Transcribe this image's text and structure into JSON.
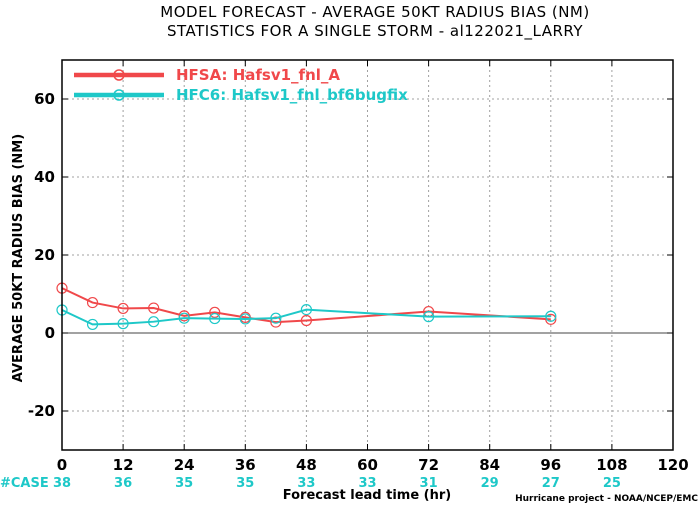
{
  "colors": {
    "hfsa": "#f0484a",
    "hfc6": "#1ec8c8",
    "case_text": "#1ec8c8",
    "grid": "#a0a0a0",
    "axis": "#000000"
  },
  "chart_data": {
    "type": "line",
    "title": "MODEL FORECAST - AVERAGE 50KT RADIUS BIAS (NM)",
    "subtitle": "STATISTICS FOR A SINGLE STORM - al122021_LARRY",
    "xlabel": "Forecast lead time (hr)",
    "ylabel": "AVERAGE 50KT RADIUS BIAS (NM)",
    "xlim": [
      0,
      120
    ],
    "ylim": [
      -30,
      70
    ],
    "xticks": [
      0,
      12,
      24,
      36,
      48,
      60,
      72,
      84,
      96,
      108,
      120
    ],
    "yticks": [
      -20,
      0,
      20,
      40,
      60
    ],
    "grid": true,
    "zero_line": true,
    "legend_position": "top-left",
    "series": [
      {
        "name": "HFSA: Hafsv1_fnl_A",
        "color": "#f0484a",
        "x": [
          0,
          6,
          12,
          18,
          24,
          30,
          36,
          42,
          48,
          72,
          96
        ],
        "y": [
          11.5,
          7.8,
          6.3,
          6.4,
          4.4,
          5.3,
          4.0,
          2.8,
          3.2,
          5.5,
          3.5
        ]
      },
      {
        "name": "HFC6: Hafsv1_fnl_bf6bugfix",
        "color": "#1ec8c8",
        "x": [
          0,
          6,
          12,
          18,
          24,
          30,
          36,
          42,
          48,
          72,
          96
        ],
        "y": [
          5.9,
          2.2,
          2.4,
          2.9,
          3.8,
          3.7,
          3.6,
          3.8,
          6.0,
          4.2,
          4.3
        ]
      }
    ],
    "case_label": "#CASE",
    "case_counts": [
      {
        "x": 0,
        "label": "38"
      },
      {
        "x": 12,
        "label": "36"
      },
      {
        "x": 24,
        "label": "35"
      },
      {
        "x": 36,
        "label": "35"
      },
      {
        "x": 48,
        "label": "33"
      },
      {
        "x": 60,
        "label": "33"
      },
      {
        "x": 72,
        "label": "31"
      },
      {
        "x": 84,
        "label": "29"
      },
      {
        "x": 96,
        "label": "27"
      },
      {
        "x": 108,
        "label": "25"
      }
    ],
    "credit": "Hurricane project - NOAA/NCEP/EMC"
  }
}
